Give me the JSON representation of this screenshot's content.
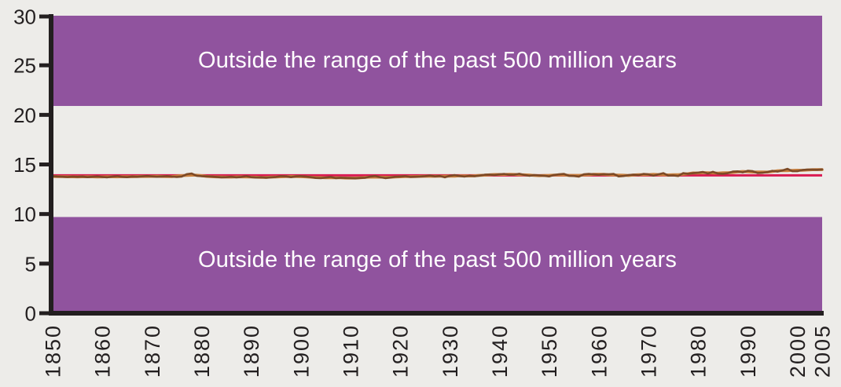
{
  "chart_data": {
    "type": "line",
    "title": "",
    "xlabel": "",
    "ylabel": "",
    "background": "#edece9",
    "axis_color": "#231f20",
    "x_range": [
      1850,
      2005
    ],
    "y_range": [
      0,
      30
    ],
    "grid": false,
    "legend": "none",
    "y_ticks": [
      0,
      5,
      10,
      15,
      20,
      25,
      30
    ],
    "x_tick_years": [
      1850,
      1860,
      1870,
      1880,
      1890,
      1900,
      1910,
      1920,
      1930,
      1940,
      1950,
      1960,
      1970,
      1980,
      1990,
      2000,
      2005
    ],
    "bands": [
      {
        "label": "Outside the range of the past 500 million years",
        "from": 20.9,
        "to": 30,
        "color": "#90539e",
        "text_color": "#ffffff"
      },
      {
        "label": "Outside the range of the past 500 million years",
        "from": 0,
        "to": 9.7,
        "color": "#90539e",
        "text_color": "#ffffff"
      }
    ],
    "baseline": {
      "name": "long-term-average-temperature",
      "value": 13.9,
      "color": "#da1a52",
      "width": 3
    },
    "series": [
      {
        "name": "annual-global-average-temperature",
        "color": "#7d4a26",
        "width": 2.6,
        "start_year": 1850,
        "step": 1,
        "values": [
          13.82,
          13.78,
          13.76,
          13.73,
          13.77,
          13.75,
          13.78,
          13.72,
          13.76,
          13.79,
          13.74,
          13.7,
          13.77,
          13.82,
          13.75,
          13.72,
          13.78,
          13.76,
          13.8,
          13.84,
          13.8,
          13.76,
          13.79,
          13.82,
          13.77,
          13.74,
          13.78,
          14.02,
          14.08,
          13.86,
          13.82,
          13.8,
          13.78,
          13.74,
          13.7,
          13.72,
          13.76,
          13.7,
          13.74,
          13.82,
          13.72,
          13.68,
          13.7,
          13.66,
          13.7,
          13.74,
          13.82,
          13.8,
          13.72,
          13.8,
          13.82,
          13.78,
          13.72,
          13.64,
          13.62,
          13.68,
          13.74,
          13.62,
          13.66,
          13.64,
          13.62,
          13.6,
          13.64,
          13.66,
          13.78,
          13.84,
          13.7,
          13.62,
          13.68,
          13.76,
          13.78,
          13.82,
          13.74,
          13.76,
          13.78,
          13.82,
          13.88,
          13.8,
          13.84,
          13.7,
          13.86,
          13.92,
          13.84,
          13.78,
          13.86,
          13.82,
          13.88,
          13.96,
          13.98,
          13.94,
          14.0,
          14.04,
          13.96,
          13.98,
          14.06,
          13.94,
          13.86,
          13.92,
          13.9,
          13.86,
          13.8,
          13.94,
          14.0,
          14.04,
          13.86,
          13.84,
          13.78,
          14.0,
          14.04,
          14.0,
          13.96,
          14.02,
          14.0,
          14.04,
          13.8,
          13.84,
          13.92,
          13.96,
          13.92,
          14.04,
          14.0,
          13.88,
          14.0,
          14.12,
          13.88,
          13.9,
          13.84,
          14.12,
          14.06,
          14.12,
          14.18,
          14.24,
          14.08,
          14.26,
          14.08,
          14.06,
          14.12,
          14.28,
          14.3,
          14.2,
          14.36,
          14.32,
          14.14,
          14.16,
          14.24,
          14.36,
          14.28,
          14.4,
          14.56,
          14.32,
          14.32,
          14.44,
          14.48,
          14.48,
          14.46,
          14.5
        ]
      },
      {
        "name": "smoothed-global-average-temperature",
        "color": "#c9803e",
        "width": 3.6,
        "derived_from": "annual-global-average-temperature",
        "smoothing_window": 5
      }
    ]
  }
}
